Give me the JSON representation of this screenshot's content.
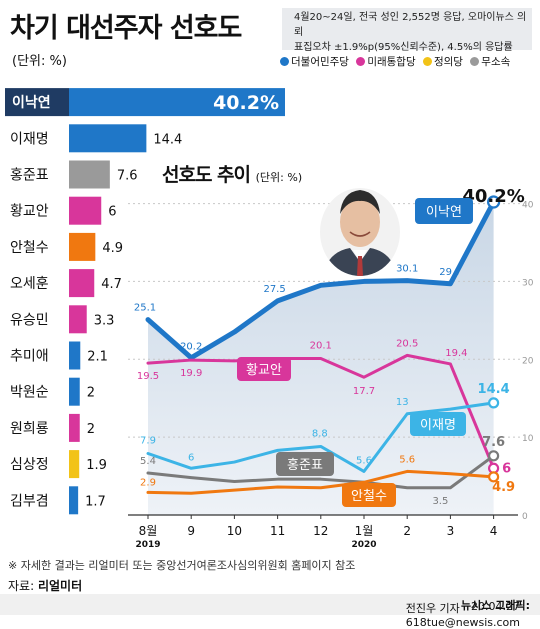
{
  "title": "차기 대선주자 선호도",
  "unit": "(단위: %)",
  "note_line1": "4월20~24일, 전국 성인 2,552명 응답, 오마이뉴스 의뢰",
  "note_line2": "표집오차 ±1.9%p(95%신뢰수준), 4.5%의 응답률",
  "legend": [
    {
      "label": "더불어민주당",
      "color": "#1f77c8"
    },
    {
      "label": "미래통합당",
      "color": "#d8369b"
    },
    {
      "label": "정의당",
      "color": "#f2c318"
    },
    {
      "label": "무소속",
      "color": "#9a9a9a"
    }
  ],
  "sub_title": "선호도 추이",
  "sub_unit": "(단위: %)",
  "footnote": "※ 자세한 결과는 리얼미터 또는 중앙선거여론조사심의위원회 홈페이지 참조",
  "source_prefix": "자료: ",
  "source_name": "리얼미터",
  "credit_prefix": "20.04.27 ",
  "credit_bold": "뉴시스 그래픽:",
  "credit_rest": " 전진우 기자 618tue@newsis.com",
  "chart_data": [
    {
      "type": "bar",
      "orientation": "horizontal",
      "categories": [
        "이낙연",
        "이재명",
        "홍준표",
        "황교안",
        "안철수",
        "오세훈",
        "유승민",
        "추미애",
        "박원순",
        "원희룡",
        "심상정",
        "김부겸"
      ],
      "values": [
        40.2,
        14.4,
        7.6,
        6,
        4.9,
        4.7,
        3.3,
        2.1,
        2,
        2,
        1.9,
        1.7
      ],
      "value_labels": [
        "40.2%",
        "14.4",
        "7.6",
        "6",
        "4.9",
        "4.7",
        "3.3",
        "2.1",
        "2",
        "2",
        "1.9",
        "1.7"
      ],
      "colors": [
        "#1f77c8",
        "#1f77c8",
        "#9a9a9a",
        "#d8369b",
        "#f07810",
        "#d8369b",
        "#d8369b",
        "#1f77c8",
        "#1f77c8",
        "#d8369b",
        "#f2c318",
        "#1f77c8"
      ]
    },
    {
      "type": "line",
      "x": [
        "8월",
        "9",
        "10",
        "11",
        "12",
        "1월",
        "2",
        "3",
        "4"
      ],
      "x_year_labels": [
        "2019",
        "2020"
      ],
      "ylim": [
        0,
        42
      ],
      "yticks": [
        0,
        10,
        20,
        30,
        40
      ],
      "series": [
        {
          "name": "이낙연",
          "color": "#1f77c8",
          "values": [
            25.1,
            20.2,
            23.5,
            27.5,
            29.5,
            30,
            30.1,
            29.7,
            40.2
          ],
          "labels": [
            "25.1",
            "20.2",
            "",
            "27.5",
            "",
            "",
            "30.1",
            "29.7",
            "40.2%"
          ]
        },
        {
          "name": "황교안",
          "color": "#d8369b",
          "values": [
            19.5,
            19.9,
            19.8,
            20.1,
            20.1,
            17.7,
            20.5,
            19.4,
            6
          ],
          "labels": [
            "19.5",
            "19.9",
            "",
            "",
            "20.1",
            "17.7",
            "20.5",
            "19.4",
            "6"
          ]
        },
        {
          "name": "이재명",
          "color": "#3cb4e6",
          "values": [
            7.9,
            6,
            6.8,
            8.3,
            8.8,
            5.6,
            13,
            13.6,
            14.4
          ],
          "labels": [
            "7.9",
            "6",
            "",
            "",
            "8.8",
            "5.6",
            "13",
            "",
            "14.4"
          ]
        },
        {
          "name": "홍준표",
          "color": "#7a7a7a",
          "values": [
            5.4,
            4.8,
            4.3,
            4.6,
            4.6,
            4.2,
            3.5,
            3.5,
            7.6
          ],
          "labels": [
            "5.4",
            "",
            "",
            "",
            "",
            "",
            "",
            "3.5",
            "7.6"
          ]
        },
        {
          "name": "안철수",
          "color": "#f07810",
          "values": [
            2.9,
            2.8,
            3.2,
            3.6,
            3.5,
            4.2,
            5.6,
            5.3,
            4.9
          ],
          "labels": [
            "2.9",
            "",
            "",
            "",
            "",
            "",
            "5.6",
            "",
            "4.9"
          ]
        }
      ],
      "series_name_labels": [
        "이낙연",
        "황교안",
        "이재명",
        "홍준표",
        "안철수"
      ]
    }
  ]
}
